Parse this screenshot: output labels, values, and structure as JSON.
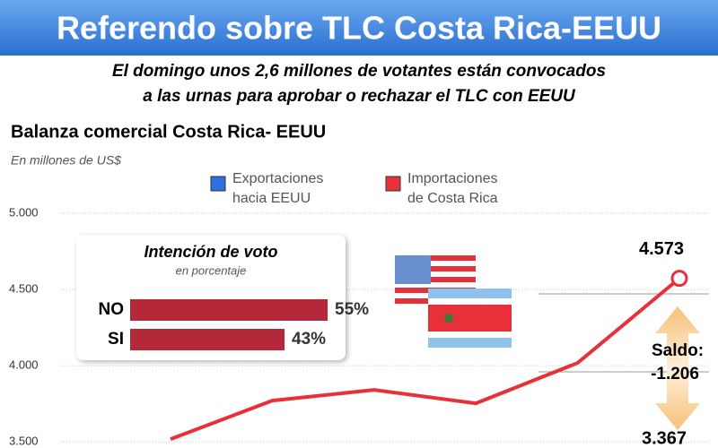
{
  "header": {
    "title": "Referendo sobre TLC Costa Rica-EEUU",
    "subtitle": [
      "El domingo unos 2,6 millones de votantes están convocados",
      "a las urnas para aprobar o rechazar el TLC con EEUU"
    ]
  },
  "chart_data": [
    {
      "type": "line",
      "title": "Balanza comercial Costa Rica- EEUU",
      "subtitle": "En millones de US$",
      "categories": [
        null,
        null,
        null,
        null,
        null,
        null
      ],
      "legend": [
        {
          "name": [
            "Exportaciones",
            "hacia EEUU"
          ],
          "color": "#2f6fe0"
        },
        {
          "name": [
            "Importaciones",
            "de Costa Rica"
          ],
          "color": "#e8303a"
        }
      ],
      "series": [
        {
          "name": "Importaciones de Costa Rica",
          "color": "#e8303a",
          "values": [
            3518,
            3771,
            3841,
            3753,
            4018,
            4573
          ],
          "value_labels": [
            null,
            null,
            null,
            null,
            null,
            "4.573"
          ]
        }
      ],
      "ylim": [
        3460,
        5000
      ],
      "yticks": [
        {
          "value": 3500,
          "label": "3.500"
        },
        {
          "value": 4000,
          "label": "4.000"
        },
        {
          "value": 4500,
          "label": "4.500"
        },
        {
          "value": 5000,
          "label": "5.000"
        }
      ],
      "grid": true,
      "annotations": [
        {
          "value": 3367,
          "label": "3.367"
        },
        {
          "title": "Saldo:",
          "value": -1206,
          "label": "-1.206"
        }
      ]
    },
    {
      "type": "hbar",
      "title": "Intención de voto",
      "subtitle": "en porcentaje",
      "categories": [
        "NO",
        "SI"
      ],
      "values": [
        55,
        43
      ],
      "value_labels": [
        "55%",
        "43%"
      ],
      "color": "#b5283a"
    }
  ]
}
